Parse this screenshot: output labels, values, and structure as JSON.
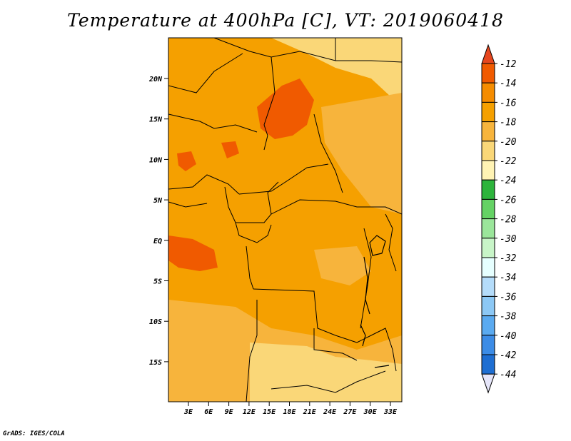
{
  "title": "Temperature at 400hPa [C], VT: 2019060418",
  "credit": "GrADS: IGES/COLA",
  "map": {
    "y_axis_labels": [
      "20N",
      "15N",
      "10N",
      "5N",
      "EQ",
      "5S",
      "10S",
      "15S"
    ],
    "x_axis_labels": [
      "3E",
      "6E",
      "9E",
      "12E",
      "15E",
      "18E",
      "21E",
      "24E",
      "27E",
      "30E",
      "33E"
    ]
  },
  "colorbar": {
    "labels": [
      "-12",
      "-14",
      "-16",
      "-18",
      "-20",
      "-22",
      "-24",
      "-26",
      "-28",
      "-30",
      "-32",
      "-34",
      "-36",
      "-38",
      "-40",
      "-42",
      "-44"
    ],
    "colors": [
      "#f05a00",
      "#f58c00",
      "#f5a000",
      "#f7b43c",
      "#fad778",
      "#fff3b4",
      "#2db43c",
      "#64d264",
      "#9be69b",
      "#c8f5c8",
      "#e6ffff",
      "#b4dcfa",
      "#8cc8f5",
      "#5aaaf0",
      "#3c8ce6",
      "#1e6ed2",
      "#0a50be"
    ],
    "top_arrow_color": "#e6461e",
    "bottom_arrow_color": "#0f0f78"
  }
}
